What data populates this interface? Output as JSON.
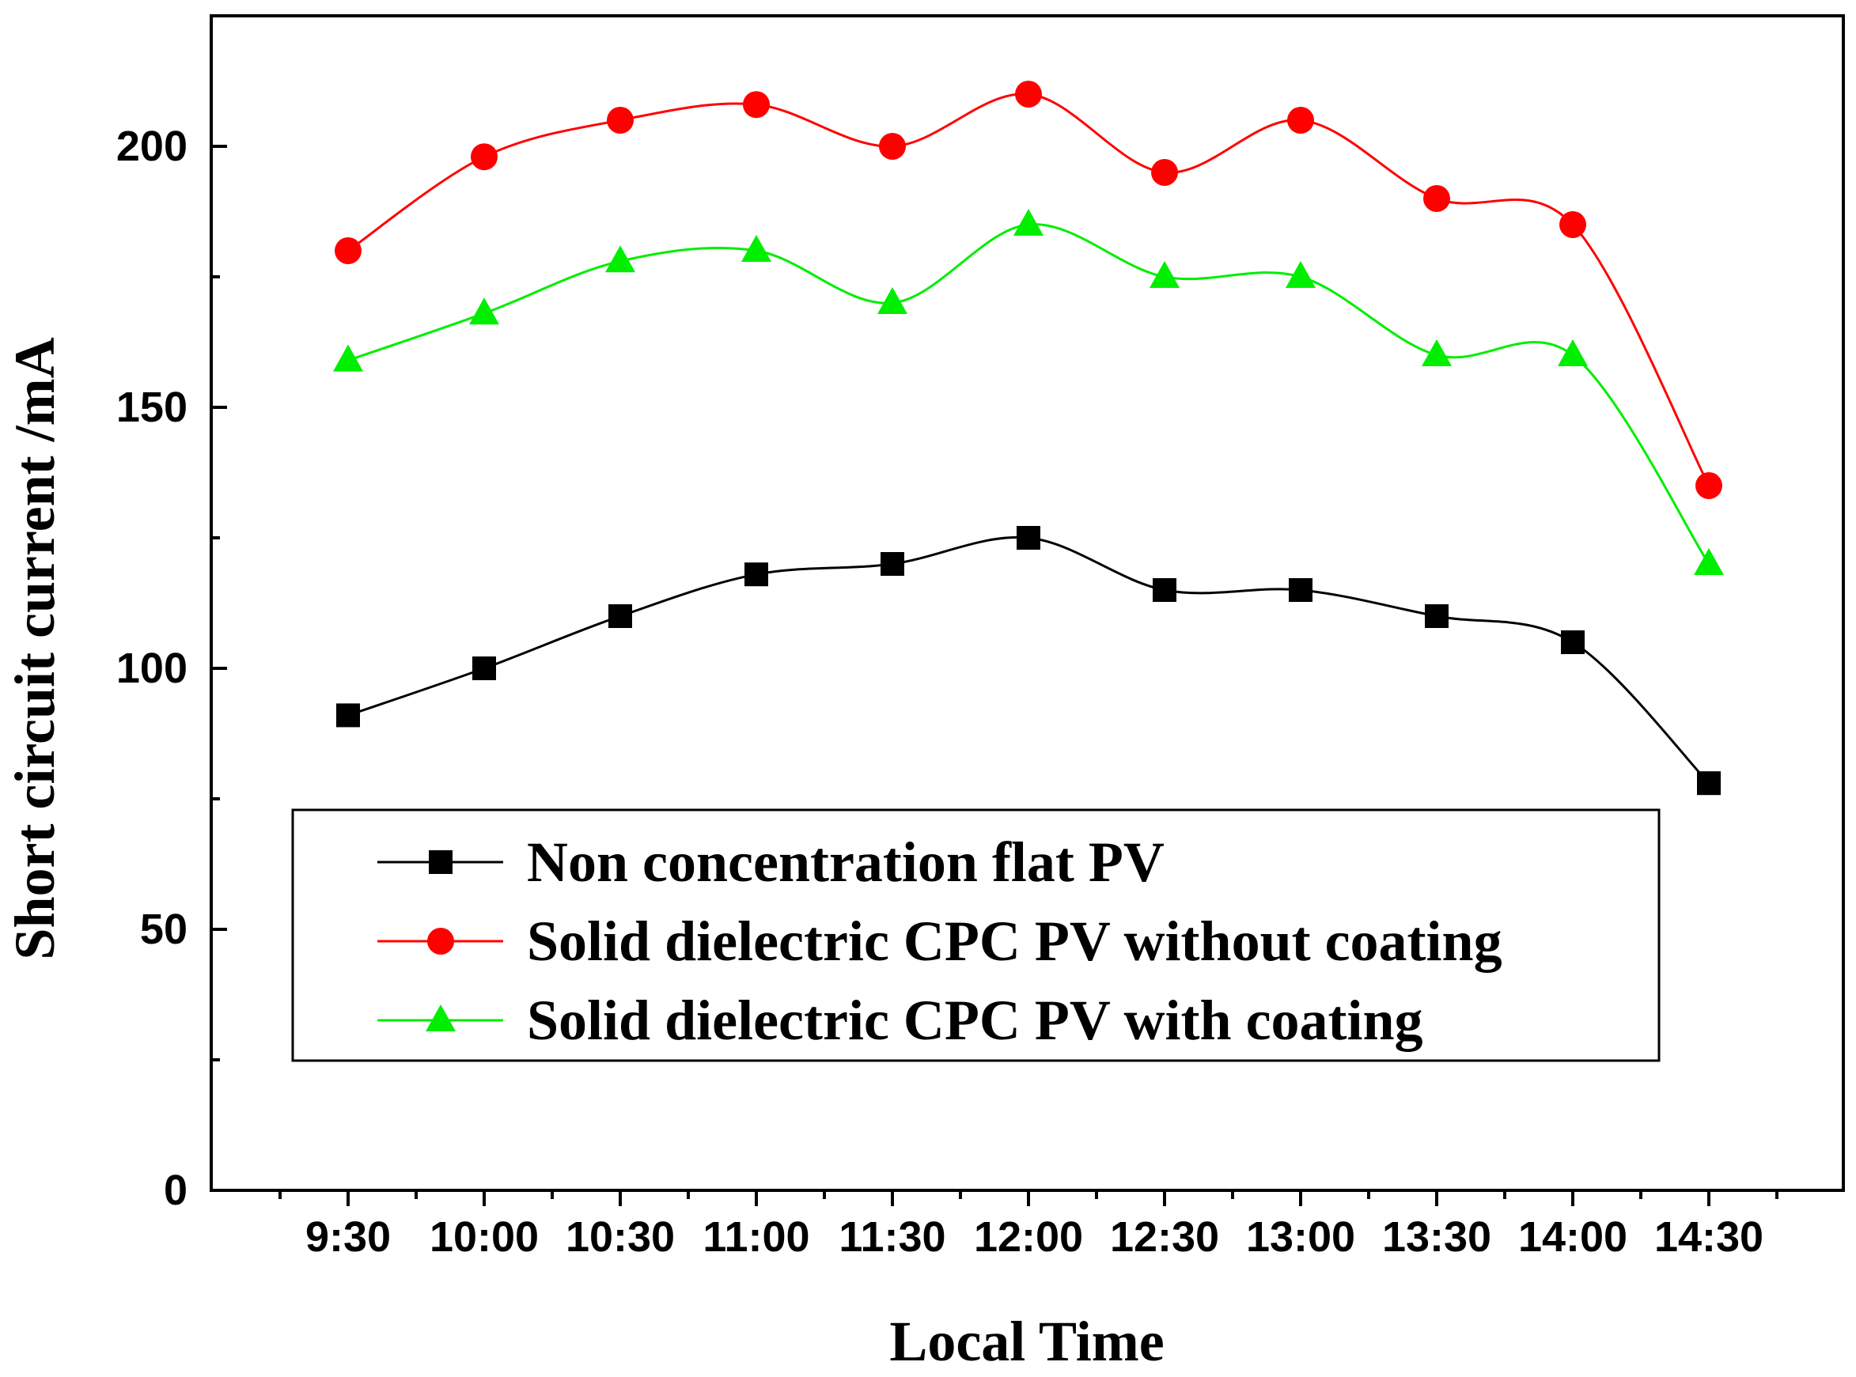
{
  "chart_data": {
    "type": "line",
    "title": "",
    "xlabel": "Local Time",
    "ylabel": "Short circuit current /mA",
    "categories": [
      "9:30",
      "10:00",
      "10:30",
      "11:00",
      "11:30",
      "12:00",
      "12:30",
      "13:00",
      "13:30",
      "14:00",
      "14:30"
    ],
    "ylim": [
      0,
      225
    ],
    "yticks": [
      0,
      50,
      100,
      150,
      200
    ],
    "grid": false,
    "legend_position": "bottom-center",
    "series": [
      {
        "name": "Non concentration flat PV",
        "color": "#000000",
        "marker": "square",
        "values": [
          91,
          100,
          110,
          118,
          120,
          125,
          115,
          115,
          110,
          105,
          78
        ]
      },
      {
        "name": "Solid dielectric CPC PV without coating",
        "color": "#ff0000",
        "marker": "circle",
        "values": [
          180,
          198,
          205,
          208,
          200,
          210,
          195,
          205,
          190,
          185,
          135
        ]
      },
      {
        "name": "Solid dielectric CPC PV with coating",
        "color": "#00ee00",
        "marker": "triangle",
        "values": [
          159,
          168,
          178,
          180,
          170,
          185,
          175,
          175,
          160,
          160,
          120
        ]
      }
    ]
  }
}
